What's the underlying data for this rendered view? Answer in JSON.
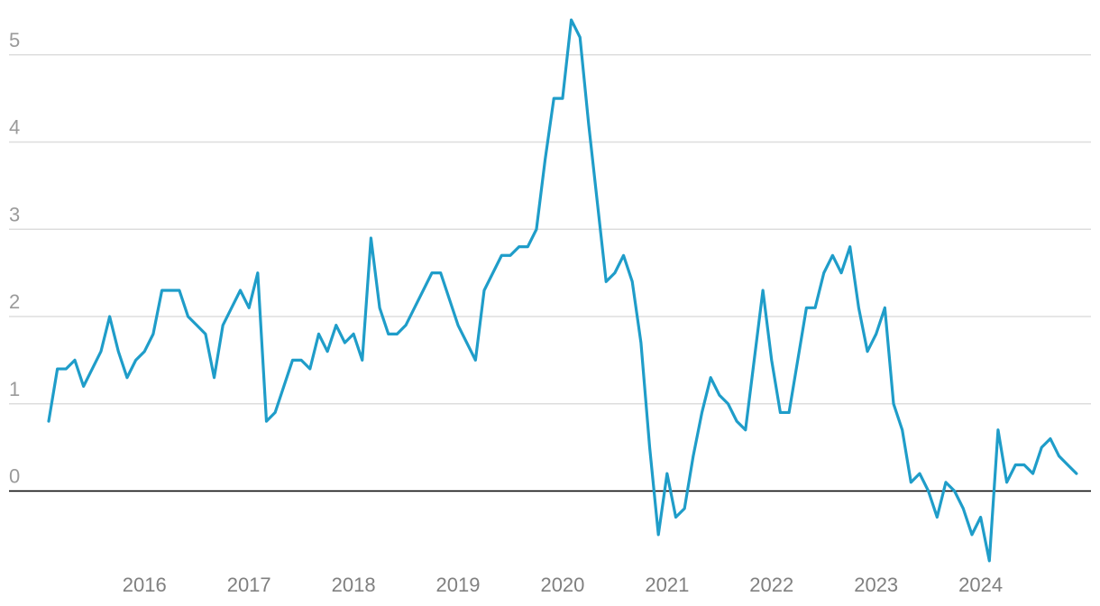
{
  "chart_data": {
    "type": "line",
    "title": "",
    "xlabel": "",
    "ylabel": "",
    "x_start": "2015-02",
    "x_frequency": "monthly",
    "ylim": [
      -0.9,
      5.5
    ],
    "yticks": [
      0,
      1,
      2,
      3,
      4,
      5
    ],
    "xticks": [
      "2016",
      "2017",
      "2018",
      "2019",
      "2020",
      "2021",
      "2022",
      "2023",
      "2024"
    ],
    "grid": true,
    "legend": "none",
    "colors": {
      "line": "#1f9dc9",
      "grid": "#dddddd",
      "zero_line": "#000000",
      "tick_text": "#9a9a9a"
    },
    "series": [
      {
        "values": [
          0.8,
          1.4,
          1.4,
          1.5,
          1.2,
          1.4,
          1.6,
          2.0,
          1.6,
          1.3,
          1.5,
          1.6,
          1.8,
          2.3,
          2.3,
          2.3,
          2.0,
          1.9,
          1.8,
          1.3,
          1.9,
          2.1,
          2.3,
          2.1,
          2.5,
          0.8,
          0.9,
          1.2,
          1.5,
          1.5,
          1.4,
          1.8,
          1.6,
          1.9,
          1.7,
          1.8,
          1.5,
          2.9,
          2.1,
          1.8,
          1.8,
          1.9,
          2.1,
          2.3,
          2.5,
          2.5,
          2.2,
          1.9,
          1.7,
          1.5,
          2.3,
          2.5,
          2.7,
          2.7,
          2.8,
          2.8,
          3.0,
          3.8,
          4.5,
          4.5,
          5.4,
          5.2,
          4.2,
          3.3,
          2.4,
          2.5,
          2.7,
          2.4,
          1.7,
          0.5,
          -0.5,
          0.2,
          -0.3,
          -0.2,
          0.4,
          0.9,
          1.3,
          1.1,
          1.0,
          0.8,
          0.7,
          1.5,
          2.3,
          1.5,
          0.9,
          0.9,
          1.5,
          2.1,
          2.1,
          2.5,
          2.7,
          2.5,
          2.8,
          2.1,
          1.6,
          1.8,
          2.1,
          1.0,
          0.7,
          0.1,
          0.2,
          0.0,
          -0.3,
          0.1,
          0.0,
          -0.2,
          -0.5,
          -0.3,
          -0.8,
          0.7,
          0.1,
          0.3,
          0.3,
          0.2,
          0.5,
          0.6,
          0.4,
          0.3,
          0.2
        ]
      }
    ]
  }
}
